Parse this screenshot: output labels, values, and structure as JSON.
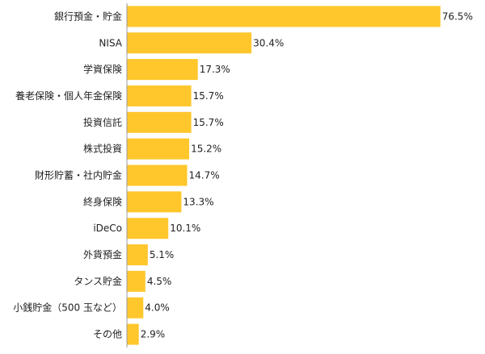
{
  "chart_data": {
    "type": "bar",
    "orientation": "horizontal",
    "categories": [
      "銀行預金・貯金",
      "NISA",
      "学資保険",
      "養老保険・個人年金保険",
      "投資信託",
      "株式投資",
      "財形貯蓄・社内貯金",
      "終身保険",
      "iDeCo",
      "外貨預金",
      "タンス貯金",
      "小銭貯金（500 玉など）",
      "その他"
    ],
    "values": [
      76.5,
      30.4,
      17.3,
      15.7,
      15.7,
      15.2,
      14.7,
      13.3,
      10.1,
      5.1,
      4.5,
      4.0,
      2.9
    ],
    "value_labels": [
      "76.5%",
      "30.4%",
      "17.3%",
      "15.7%",
      "15.7%",
      "15.2%",
      "14.7%",
      "13.3%",
      "10.1%",
      "5.1%",
      "4.5%",
      "4.0%",
      "2.9%"
    ],
    "xlim": [
      0,
      100
    ],
    "bar_color": "#ffc72c",
    "axis_color": "#9a9a9a",
    "grid": false,
    "legend": "none"
  }
}
